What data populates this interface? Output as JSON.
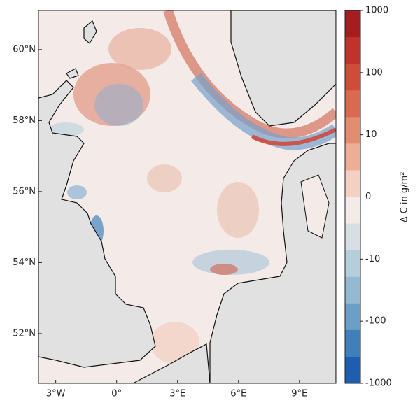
{
  "map": {
    "xlim": [
      -3.85,
      10.8
    ],
    "ylim": [
      50.6,
      61.1
    ],
    "xticks": [
      {
        "value": -3,
        "label": "3°W"
      },
      {
        "value": 0,
        "label": "0°"
      },
      {
        "value": 3,
        "label": "3°E"
      },
      {
        "value": 6,
        "label": "6°E"
      },
      {
        "value": 9,
        "label": "9°E"
      }
    ],
    "yticks": [
      {
        "value": 60,
        "label": "60°N"
      },
      {
        "value": 58,
        "label": "58°N"
      },
      {
        "value": 56,
        "label": "56°N"
      },
      {
        "value": 54,
        "label": "54°N"
      },
      {
        "value": 52,
        "label": "52°N"
      }
    ]
  },
  "colorbar": {
    "label": "Δ C in g/m²",
    "clim": [
      -1000,
      1000
    ],
    "scale": "symlog",
    "ticks": [
      1000,
      100,
      10,
      0,
      -10,
      -100,
      -1000
    ],
    "colors": [
      "#a61c1f",
      "#c0322a",
      "#cf4c37",
      "#da6a4f",
      "#e48c70",
      "#eeae96",
      "#f4d0c2",
      "#f3ebe8",
      "#d7dfe5",
      "#b6cddc",
      "#93b9d3",
      "#6aa0c8",
      "#3f80bc",
      "#1c5fb0"
    ]
  }
}
